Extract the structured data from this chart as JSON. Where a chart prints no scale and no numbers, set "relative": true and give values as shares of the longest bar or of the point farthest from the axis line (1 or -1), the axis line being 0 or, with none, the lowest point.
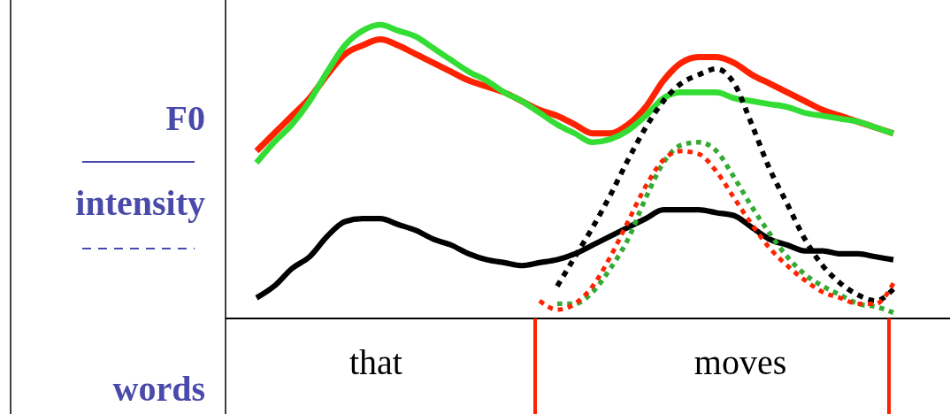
{
  "chart_data": {
    "type": "line",
    "relative": true,
    "grid": false,
    "marker": "none",
    "categories": [
      null,
      null,
      null,
      null,
      null,
      null,
      null,
      null,
      null,
      null,
      null,
      null,
      null,
      null,
      null,
      null,
      null,
      null,
      null,
      null,
      null,
      null,
      null,
      null,
      null,
      null,
      null,
      null,
      null,
      null,
      null,
      null,
      null,
      null,
      null,
      null,
      null
    ],
    "annotations": [
      "F0",
      "intensity",
      "words",
      "that",
      "moves"
    ],
    "series": [
      {
        "color": "#ff2200",
        "line_style": "solid",
        "values": [
          0.57,
          0.63,
          0.69,
          0.75,
          0.83,
          0.9,
          0.93,
          0.95,
          0.93,
          0.9,
          0.87,
          0.84,
          0.81,
          0.79,
          0.77,
          0.74,
          0.71,
          0.69,
          0.66,
          0.63,
          0.63,
          0.66,
          0.72,
          0.81,
          0.87,
          0.89,
          0.89,
          0.87,
          0.83,
          0.8,
          0.77,
          0.74,
          0.71,
          0.69,
          0.67,
          0.65,
          0.63
        ]
      },
      {
        "color": "#33dd33",
        "line_style": "solid",
        "values": [
          0.53,
          0.6,
          0.66,
          0.74,
          0.84,
          0.93,
          0.98,
          1.0,
          0.98,
          0.96,
          0.92,
          0.88,
          0.84,
          0.81,
          0.77,
          0.74,
          0.7,
          0.66,
          0.63,
          0.6,
          0.61,
          0.64,
          0.69,
          0.75,
          0.77,
          0.77,
          0.77,
          0.75,
          0.74,
          0.73,
          0.72,
          0.7,
          0.69,
          0.68,
          0.67,
          0.65,
          0.63
        ]
      },
      {
        "color": "#000000",
        "line_style": "solid",
        "values": [
          0.07,
          0.11,
          0.17,
          0.21,
          0.28,
          0.33,
          0.34,
          0.34,
          0.32,
          0.3,
          0.27,
          0.25,
          0.22,
          0.2,
          0.19,
          0.18,
          0.19,
          0.2,
          0.22,
          0.25,
          0.28,
          0.31,
          0.34,
          0.37,
          0.37,
          0.37,
          0.36,
          0.35,
          0.31,
          0.27,
          0.25,
          0.23,
          0.23,
          0.22,
          0.22,
          0.21,
          0.2
        ]
      },
      {
        "color": "#000000",
        "line_style": "dotted",
        "values": [
          null,
          null,
          null,
          null,
          null,
          null,
          null,
          null,
          null,
          null,
          null,
          null,
          null,
          null,
          null,
          null,
          null,
          0.11,
          0.21,
          0.31,
          0.42,
          0.54,
          0.65,
          0.74,
          0.8,
          0.83,
          0.85,
          0.8,
          0.66,
          0.51,
          0.39,
          0.27,
          0.18,
          0.12,
          0.08,
          0.06,
          0.1
        ]
      },
      {
        "color": "#33aa33",
        "line_style": "dotted",
        "values": [
          null,
          null,
          null,
          null,
          null,
          null,
          null,
          null,
          null,
          null,
          null,
          null,
          null,
          null,
          null,
          null,
          null,
          0.05,
          0.05,
          0.09,
          0.17,
          0.27,
          0.41,
          0.53,
          0.59,
          0.6,
          0.57,
          0.48,
          0.38,
          0.29,
          0.21,
          0.15,
          0.11,
          0.08,
          0.05,
          0.04,
          0.02
        ]
      },
      {
        "color": "#ff2200",
        "line_style": "dotted",
        "values": [
          null,
          null,
          null,
          null,
          null,
          null,
          null,
          null,
          null,
          null,
          null,
          null,
          null,
          null,
          null,
          null,
          0.06,
          0.03,
          0.05,
          0.11,
          0.21,
          0.33,
          0.45,
          0.54,
          0.57,
          0.56,
          0.5,
          0.41,
          0.32,
          0.24,
          0.18,
          0.13,
          0.09,
          0.07,
          0.05,
          0.05,
          0.12
        ]
      }
    ]
  }
}
